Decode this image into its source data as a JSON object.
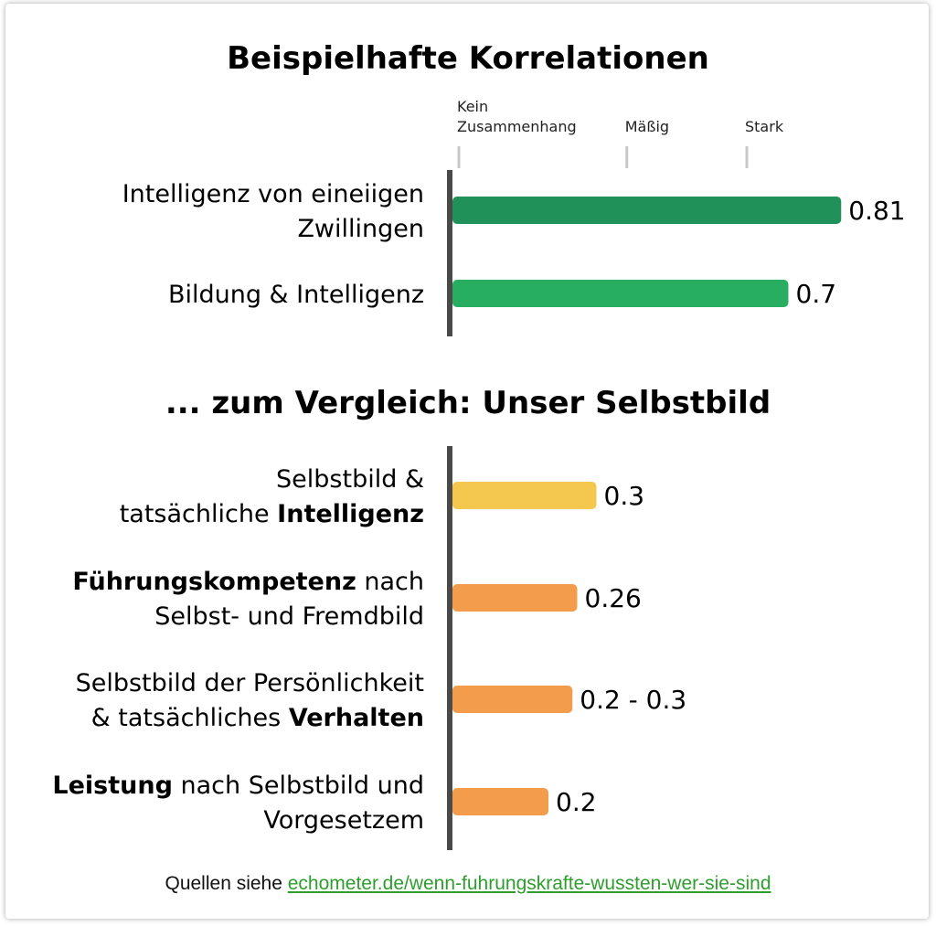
{
  "chart_data": [
    {
      "type": "bar",
      "orientation": "horizontal",
      "title": "Beispielhafte Korrelationen",
      "xlim": [
        0,
        1
      ],
      "ticks": [
        {
          "value": 0.0,
          "label_lines": [
            "Kein",
            "Zusammenhang"
          ]
        },
        {
          "value": 0.35,
          "label_lines": [
            "Mäßig"
          ]
        },
        {
          "value": 0.6,
          "label_lines": [
            "Stark"
          ]
        }
      ],
      "categories": [
        {
          "lines": [
            [
              {
                "t": "Intelligenz von eineiigen",
                "b": false
              }
            ],
            [
              {
                "t": "Zwillingen",
                "b": false
              }
            ]
          ]
        },
        {
          "lines": [
            [
              {
                "t": "Bildung & Intelligenz",
                "b": false
              }
            ]
          ]
        }
      ],
      "values": [
        0.81,
        0.7
      ],
      "value_labels": [
        "0.81",
        "0.7"
      ],
      "colors": [
        "#21915a",
        "#27ae60"
      ]
    },
    {
      "type": "bar",
      "orientation": "horizontal",
      "title": "... zum Vergleich: Unser Selbstbild",
      "xlim": [
        0,
        1
      ],
      "categories": [
        {
          "lines": [
            [
              {
                "t": "Selbstbild & ",
                "b": false
              }
            ],
            [
              {
                "t": "tatsächliche ",
                "b": false
              },
              {
                "t": "Intelligenz",
                "b": true
              }
            ]
          ]
        },
        {
          "lines": [
            [
              {
                "t": "Führungskompetenz",
                "b": true
              },
              {
                "t": " nach",
                "b": false
              }
            ],
            [
              {
                "t": "Selbst- und Fremdbild",
                "b": false
              }
            ]
          ]
        },
        {
          "lines": [
            [
              {
                "t": "Selbstbild der Persönlichkeit",
                "b": false
              }
            ],
            [
              {
                "t": "& tatsächliches ",
                "b": false
              },
              {
                "t": "Verhalten",
                "b": true
              }
            ]
          ]
        },
        {
          "lines": [
            [
              {
                "t": "Leistung",
                "b": true
              },
              {
                "t": " nach Selbstbild und",
                "b": false
              }
            ],
            [
              {
                "t": "Vorgesetzem",
                "b": false
              }
            ]
          ]
        }
      ],
      "values": [
        0.3,
        0.26,
        0.25,
        0.2
      ],
      "value_labels": [
        "0.3",
        "0.26",
        "0.2 - 0.3",
        "0.2"
      ],
      "colors": [
        "#f4c84e",
        "#f39c4c",
        "#f39c4c",
        "#f39c4c"
      ]
    }
  ],
  "footer": {
    "prefix": "Quellen siehe ",
    "link_text": "echometer.de/wenn-fuhrungskrafte-wussten-wer-sie-sind",
    "link_color": "#2e9e2e"
  }
}
